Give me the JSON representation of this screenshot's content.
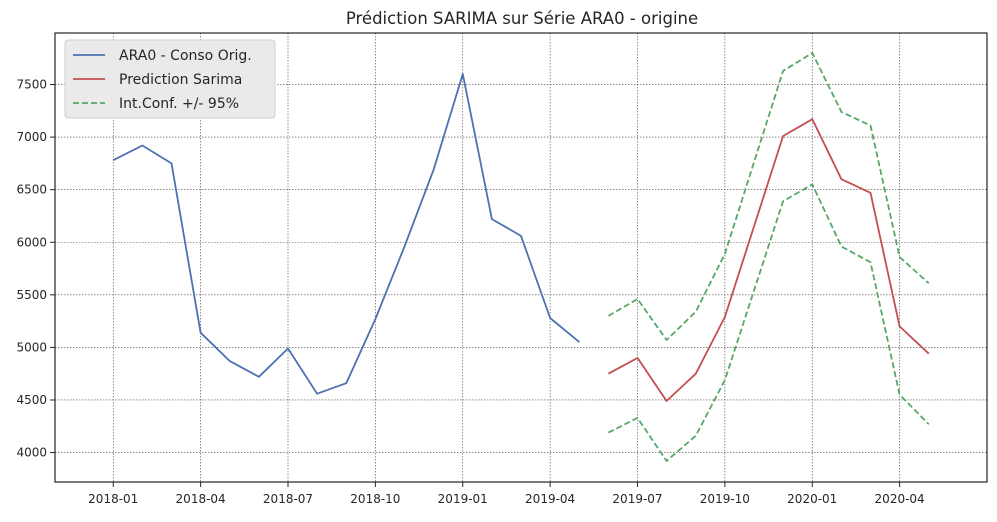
{
  "chart_data": {
    "type": "line",
    "title": "Prédiction SARIMA sur Série ARA0 - origine",
    "xlabel": "",
    "ylabel": "",
    "x_ticks": [
      "2018-01",
      "2018-04",
      "2018-07",
      "2018-10",
      "2019-01",
      "2019-04",
      "2019-07",
      "2019-10",
      "2020-01",
      "2020-04"
    ],
    "y_ticks": [
      4000,
      4500,
      5000,
      5500,
      6000,
      6500,
      7000,
      7500
    ],
    "ylim": [
      3720,
      7990
    ],
    "grid": true,
    "legend_position": "top-left",
    "series": [
      {
        "name": "ARA0 - Conso Orig.",
        "color": "#4c72b0",
        "style": "solid",
        "x": [
          "2018-01",
          "2018-02",
          "2018-03",
          "2018-04",
          "2018-05",
          "2018-06",
          "2018-07",
          "2018-08",
          "2018-09",
          "2018-10",
          "2018-11",
          "2018-12",
          "2019-01",
          "2019-02",
          "2019-03",
          "2019-04",
          "2019-05"
        ],
        "values": [
          6780,
          6920,
          6750,
          5140,
          4870,
          4720,
          4990,
          4560,
          4660,
          5270,
          5960,
          6690,
          7600,
          6220,
          6060,
          5280,
          5050
        ]
      },
      {
        "name": "Prediction Sarima",
        "color": "#c44e52",
        "style": "solid",
        "x": [
          "2019-06",
          "2019-07",
          "2019-08",
          "2019-09",
          "2019-10",
          "2019-11",
          "2019-12",
          "2020-01",
          "2020-02",
          "2020-03",
          "2020-04",
          "2020-05"
        ],
        "values": [
          4750,
          4900,
          4490,
          4750,
          5290,
          6150,
          7010,
          7170,
          6600,
          6470,
          5200,
          4940
        ]
      },
      {
        "name": "Int.Conf. +/- 95%",
        "color": "#55a868",
        "style": "dashed",
        "x": [
          "2019-06",
          "2019-07",
          "2019-08",
          "2019-09",
          "2019-10",
          "2019-11",
          "2019-12",
          "2020-01",
          "2020-02",
          "2020-03",
          "2020-04",
          "2020-05"
        ],
        "values": [
          5300,
          5460,
          5070,
          5340,
          5890,
          6760,
          7630,
          7800,
          7240,
          7110,
          5860,
          5610
        ]
      },
      {
        "color": "#55a868",
        "style": "dashed",
        "x": [
          "2019-06",
          "2019-07",
          "2019-08",
          "2019-09",
          "2019-10",
          "2019-11",
          "2019-12",
          "2020-01",
          "2020-02",
          "2020-03",
          "2020-04",
          "2020-05"
        ],
        "values": [
          4190,
          4330,
          3920,
          4160,
          4690,
          5540,
          6390,
          6550,
          5960,
          5810,
          4550,
          4270
        ]
      }
    ]
  }
}
